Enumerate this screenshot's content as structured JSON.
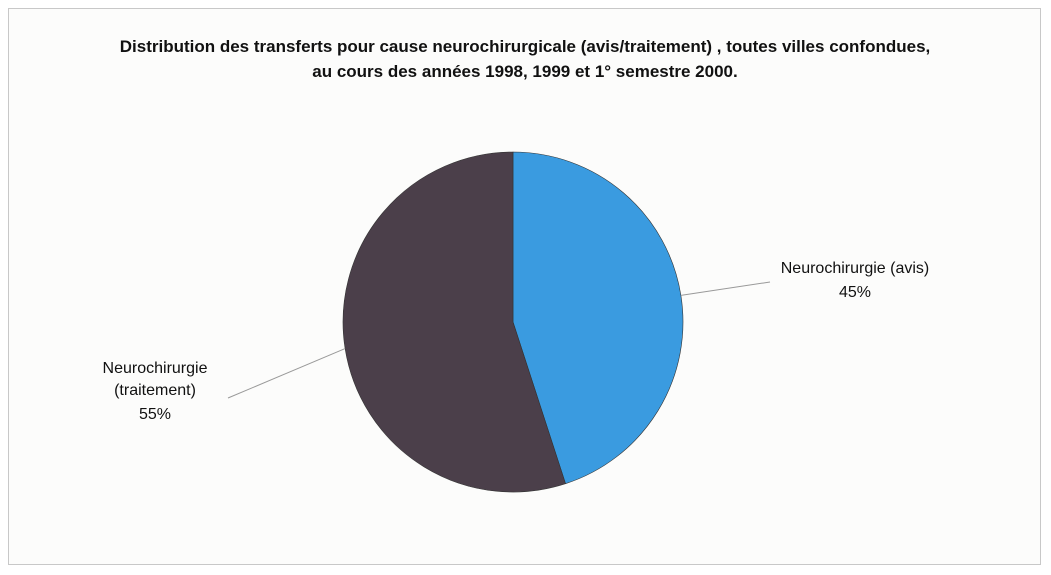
{
  "chart_data": {
    "type": "pie",
    "title": "Distribution des transferts pour cause neurochirurgicale (avis/traitement) , toutes villes confondues, au cours des années 1998, 1999 et 1° semestre 2000.",
    "categories": [
      "Neurochirurgie (avis)",
      "Neurochirurgie (traitement)"
    ],
    "values": [
      45,
      55
    ],
    "value_labels": [
      "45%",
      "55%"
    ],
    "colors": [
      "#3a9be0",
      "#4b3f4a"
    ]
  }
}
